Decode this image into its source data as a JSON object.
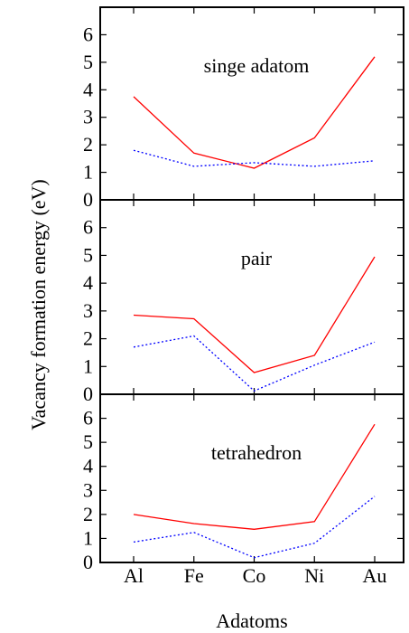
{
  "chart_data": {
    "type": "line",
    "ylabel": "Vacancy formation energy (eV)",
    "xlabel": "Adatoms",
    "categories": [
      "Al",
      "Fe",
      "Co",
      "Ni",
      "Au"
    ],
    "ylim": [
      0,
      7
    ],
    "yticks": [
      0,
      1,
      2,
      3,
      4,
      5,
      6
    ],
    "grid": false,
    "legend": "none",
    "colors": {
      "solid": "#ff0000",
      "dotted": "#0000ff",
      "axes": "#000000"
    },
    "panels": [
      {
        "label": "singe adatom",
        "series": [
          {
            "style": "solid",
            "values": [
              3.75,
              1.7,
              1.15,
              2.25,
              5.2
            ]
          },
          {
            "style": "dotted",
            "values": [
              1.8,
              1.22,
              1.35,
              1.22,
              1.42
            ]
          }
        ]
      },
      {
        "label": "pair",
        "series": [
          {
            "style": "solid",
            "values": [
              2.85,
              2.72,
              0.78,
              1.4,
              4.95
            ]
          },
          {
            "style": "dotted",
            "values": [
              1.7,
              2.1,
              0.12,
              1.05,
              1.88
            ]
          }
        ]
      },
      {
        "label": "tetrahedron",
        "series": [
          {
            "style": "solid",
            "values": [
              2.0,
              1.62,
              1.38,
              1.7,
              5.75
            ]
          },
          {
            "style": "dotted",
            "values": [
              0.85,
              1.25,
              0.2,
              0.8,
              2.75
            ]
          }
        ]
      }
    ]
  }
}
